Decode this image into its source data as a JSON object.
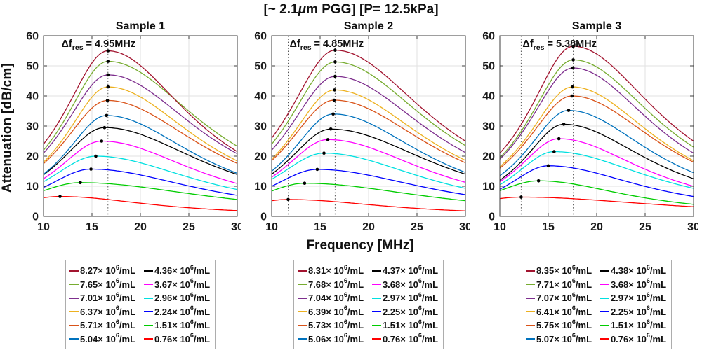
{
  "figure": {
    "title_pre": "[~ 2.1",
    "title_mu": "μ",
    "title_post": "m PGG] [P= 12.5kPa]",
    "xlabel": "Frequency [MHz]",
    "ylabel": "Attenuation [dB/cm]"
  },
  "axes": {
    "xlim": [
      10,
      30
    ],
    "ylim": [
      0,
      60
    ],
    "xticks": [
      10,
      15,
      20,
      25,
      30
    ],
    "yticks": [
      0,
      10,
      20,
      30,
      40,
      50,
      60
    ],
    "grid": true
  },
  "annotation_format": {
    "delta_prefix": "Δf",
    "subscript": "res",
    "equals": " = ",
    "unit": "MHz"
  },
  "legend_format": {
    "times_prefix": "× 10",
    "exponent": "6",
    "unit": "/mL"
  },
  "chart_data": [
    {
      "type": "line",
      "title": "Sample 1",
      "annotation_delta_f": "4.95",
      "ref_lines_x": [
        11.7,
        16.65
      ],
      "xlabel": "Frequency [MHz]",
      "ylabel": "Attenuation [dB/cm]",
      "series": [
        {
          "name": "8.27",
          "color": "#A2142F",
          "peak_freq_MHz": 16.65,
          "peak_attenuation": 55.0,
          "attenuation_at_10MHz": 24.0,
          "attenuation_at_30MHz": 21.5
        },
        {
          "name": "7.65",
          "color": "#77AC30",
          "peak_freq_MHz": 16.65,
          "peak_attenuation": 51.5,
          "attenuation_at_10MHz": 22.0,
          "attenuation_at_30MHz": 23.3
        },
        {
          "name": "7.01",
          "color": "#7E2F8E",
          "peak_freq_MHz": 16.65,
          "peak_attenuation": 47.0,
          "attenuation_at_10MHz": 21.0,
          "attenuation_at_30MHz": 20.8
        },
        {
          "name": "6.37",
          "color": "#EDB120",
          "peak_freq_MHz": 16.65,
          "peak_attenuation": 43.0,
          "attenuation_at_10MHz": 18.0,
          "attenuation_at_30MHz": 18.4
        },
        {
          "name": "5.71",
          "color": "#D95319",
          "peak_freq_MHz": 16.6,
          "peak_attenuation": 38.5,
          "attenuation_at_10MHz": 17.5,
          "attenuation_at_30MHz": 17.6
        },
        {
          "name": "5.04",
          "color": "#0072BD",
          "peak_freq_MHz": 16.5,
          "peak_attenuation": 33.5,
          "attenuation_at_10MHz": 14.0,
          "attenuation_at_30MHz": 14.3
        },
        {
          "name": "4.36",
          "color": "#000000",
          "peak_freq_MHz": 16.3,
          "peak_attenuation": 29.5,
          "attenuation_at_10MHz": 13.8,
          "attenuation_at_30MHz": 13.9
        },
        {
          "name": "3.67",
          "color": "#FF00FF",
          "peak_freq_MHz": 16.0,
          "peak_attenuation": 25.0,
          "attenuation_at_10MHz": 12.5,
          "attenuation_at_30MHz": 10.9
        },
        {
          "name": "2.96",
          "color": "#00E0E0",
          "peak_freq_MHz": 15.4,
          "peak_attenuation": 20.0,
          "attenuation_at_10MHz": 11.5,
          "attenuation_at_30MHz": 8.9
        },
        {
          "name": "2.24",
          "color": "#0000FF",
          "peak_freq_MHz": 14.9,
          "peak_attenuation": 15.7,
          "attenuation_at_10MHz": 9.6,
          "attenuation_at_30MHz": 7.0
        },
        {
          "name": "1.51",
          "color": "#00CC00",
          "peak_freq_MHz": 13.8,
          "peak_attenuation": 11.2,
          "attenuation_at_10MHz": 8.5,
          "attenuation_at_30MHz": 5.6
        },
        {
          "name": "0.76",
          "color": "#FF0000",
          "peak_freq_MHz": 11.7,
          "peak_attenuation": 6.6,
          "attenuation_at_10MHz": 6.2,
          "attenuation_at_30MHz": 1.9
        }
      ]
    },
    {
      "type": "line",
      "title": "Sample 2",
      "annotation_delta_f": "4.85",
      "ref_lines_x": [
        11.7,
        16.55
      ],
      "xlabel": "Frequency [MHz]",
      "ylabel": "Attenuation [dB/cm]",
      "series": [
        {
          "name": "8.31",
          "color": "#A2142F",
          "peak_freq_MHz": 16.55,
          "peak_attenuation": 55.2,
          "attenuation_at_10MHz": 26.0,
          "attenuation_at_30MHz": 25.0
        },
        {
          "name": "7.68",
          "color": "#77AC30",
          "peak_freq_MHz": 16.55,
          "peak_attenuation": 51.3,
          "attenuation_at_10MHz": 24.0,
          "attenuation_at_30MHz": 23.5
        },
        {
          "name": "7.04",
          "color": "#7E2F8E",
          "peak_freq_MHz": 16.55,
          "peak_attenuation": 46.5,
          "attenuation_at_10MHz": 22.0,
          "attenuation_at_30MHz": 21.2
        },
        {
          "name": "6.39",
          "color": "#EDB120",
          "peak_freq_MHz": 16.5,
          "peak_attenuation": 42.0,
          "attenuation_at_10MHz": 19.0,
          "attenuation_at_30MHz": 18.6
        },
        {
          "name": "5.73",
          "color": "#D95319",
          "peak_freq_MHz": 16.45,
          "peak_attenuation": 38.6,
          "attenuation_at_10MHz": 18.5,
          "attenuation_at_30MHz": 17.8
        },
        {
          "name": "5.06",
          "color": "#0072BD",
          "peak_freq_MHz": 16.35,
          "peak_attenuation": 34.0,
          "attenuation_at_10MHz": 15.0,
          "attenuation_at_30MHz": 14.6
        },
        {
          "name": "4.37",
          "color": "#000000",
          "peak_freq_MHz": 16.1,
          "peak_attenuation": 29.0,
          "attenuation_at_10MHz": 14.0,
          "attenuation_at_30MHz": 14.0
        },
        {
          "name": "3.68",
          "color": "#FF00FF",
          "peak_freq_MHz": 15.8,
          "peak_attenuation": 25.5,
          "attenuation_at_10MHz": 13.0,
          "attenuation_at_30MHz": 11.3
        },
        {
          "name": "2.97",
          "color": "#00E0E0",
          "peak_freq_MHz": 15.4,
          "peak_attenuation": 21.0,
          "attenuation_at_10MHz": 12.3,
          "attenuation_at_30MHz": 9.3
        },
        {
          "name": "2.25",
          "color": "#0000FF",
          "peak_freq_MHz": 14.7,
          "peak_attenuation": 15.6,
          "attenuation_at_10MHz": 10.0,
          "attenuation_at_30MHz": 7.2
        },
        {
          "name": "1.51",
          "color": "#00CC00",
          "peak_freq_MHz": 13.4,
          "peak_attenuation": 11.0,
          "attenuation_at_10MHz": 8.4,
          "attenuation_at_30MHz": 5.2
        },
        {
          "name": "0.76",
          "color": "#FF0000",
          "peak_freq_MHz": 11.7,
          "peak_attenuation": 5.6,
          "attenuation_at_10MHz": 5.2,
          "attenuation_at_30MHz": 1.8
        }
      ]
    },
    {
      "type": "line",
      "title": "Sample 3",
      "annotation_delta_f": "5.38",
      "ref_lines_x": [
        12.2,
        17.58
      ],
      "xlabel": "Frequency [MHz]",
      "ylabel": "Attenuation [dB/cm]",
      "series": [
        {
          "name": "8.35",
          "color": "#A2142F",
          "peak_freq_MHz": 17.58,
          "peak_attenuation": 56.5,
          "attenuation_at_10MHz": 21.0,
          "attenuation_at_30MHz": 25.0
        },
        {
          "name": "7.71",
          "color": "#77AC30",
          "peak_freq_MHz": 17.58,
          "peak_attenuation": 52.0,
          "attenuation_at_10MHz": 19.5,
          "attenuation_at_30MHz": 23.0
        },
        {
          "name": "7.07",
          "color": "#7E2F8E",
          "peak_freq_MHz": 17.55,
          "peak_attenuation": 49.3,
          "attenuation_at_10MHz": 19.0,
          "attenuation_at_30MHz": 21.0
        },
        {
          "name": "6.41",
          "color": "#EDB120",
          "peak_freq_MHz": 17.5,
          "peak_attenuation": 43.0,
          "attenuation_at_10MHz": 16.5,
          "attenuation_at_30MHz": 18.5
        },
        {
          "name": "5.75",
          "color": "#D95319",
          "peak_freq_MHz": 17.45,
          "peak_attenuation": 40.0,
          "attenuation_at_10MHz": 16.0,
          "attenuation_at_30MHz": 18.0
        },
        {
          "name": "5.07",
          "color": "#0072BD",
          "peak_freq_MHz": 17.1,
          "peak_attenuation": 35.2,
          "attenuation_at_10MHz": 13.5,
          "attenuation_at_30MHz": 14.5
        },
        {
          "name": "4.38",
          "color": "#000000",
          "peak_freq_MHz": 16.6,
          "peak_attenuation": 30.6,
          "attenuation_at_10MHz": 12.0,
          "attenuation_at_30MHz": 12.5
        },
        {
          "name": "3.68",
          "color": "#FF00FF",
          "peak_freq_MHz": 16.1,
          "peak_attenuation": 25.8,
          "attenuation_at_10MHz": 11.5,
          "attenuation_at_30MHz": 10.0
        },
        {
          "name": "2.97",
          "color": "#00E0E0",
          "peak_freq_MHz": 15.6,
          "peak_attenuation": 21.5,
          "attenuation_at_10MHz": 10.5,
          "attenuation_at_30MHz": 9.3
        },
        {
          "name": "2.25",
          "color": "#0000FF",
          "peak_freq_MHz": 15.0,
          "peak_attenuation": 16.8,
          "attenuation_at_10MHz": 9.0,
          "attenuation_at_30MHz": 6.6
        },
        {
          "name": "1.51",
          "color": "#00CC00",
          "peak_freq_MHz": 14.0,
          "peak_attenuation": 11.8,
          "attenuation_at_10MHz": 8.5,
          "attenuation_at_30MHz": 4.0
        },
        {
          "name": "0.76",
          "color": "#FF0000",
          "peak_freq_MHz": 12.2,
          "peak_attenuation": 6.4,
          "attenuation_at_10MHz": 5.9,
          "attenuation_at_30MHz": 3.2
        }
      ]
    }
  ]
}
